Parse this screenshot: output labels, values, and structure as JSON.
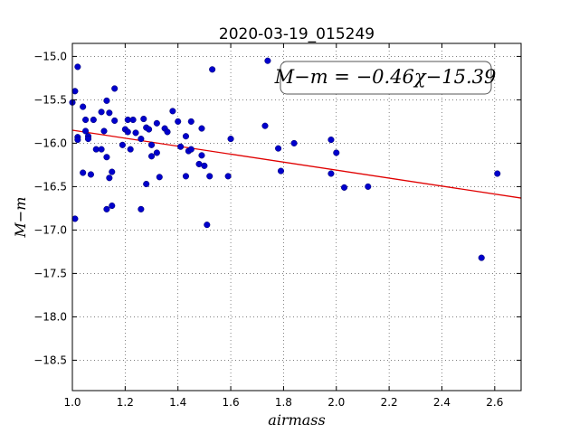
{
  "chart_data": {
    "type": "scatter",
    "title": "2020-03-19_015249",
    "xlabel": "airmass",
    "ylabel": "M−m",
    "xlim": [
      1.0,
      2.7
    ],
    "ylim": [
      -14.85,
      -18.85
    ],
    "y_inverted": true,
    "xticks": [
      1.0,
      1.2,
      1.4,
      1.6,
      1.8,
      2.0,
      2.2,
      2.4,
      2.6
    ],
    "xtick_labels": [
      "1.0",
      "1.2",
      "1.4",
      "1.6",
      "1.8",
      "2.0",
      "2.2",
      "2.4",
      "2.6"
    ],
    "yticks": [
      -15.0,
      -15.5,
      -16.0,
      -16.5,
      -17.0,
      -17.5,
      -18.0,
      -18.5
    ],
    "ytick_labels": [
      "−15.0",
      "−15.5",
      "−16.0",
      "−16.5",
      "−17.0",
      "−17.5",
      "−18.0",
      "−18.5"
    ],
    "grid": true,
    "annotation": "M−m = −0.46χ−15.39",
    "fit": {
      "slope": -0.46,
      "intercept": -15.39,
      "color": "#e00000"
    },
    "marker_color": "#0000cc",
    "points": [
      [
        1.0,
        -15.53
      ],
      [
        1.01,
        -15.4
      ],
      [
        1.02,
        -15.12
      ],
      [
        1.01,
        -16.87
      ],
      [
        1.02,
        -15.93
      ],
      [
        1.02,
        -15.96
      ],
      [
        1.04,
        -15.58
      ],
      [
        1.04,
        -16.34
      ],
      [
        1.05,
        -15.73
      ],
      [
        1.05,
        -15.86
      ],
      [
        1.06,
        -15.92
      ],
      [
        1.06,
        -15.95
      ],
      [
        1.07,
        -16.36
      ],
      [
        1.08,
        -15.73
      ],
      [
        1.09,
        -16.07
      ],
      [
        1.11,
        -16.07
      ],
      [
        1.11,
        -15.64
      ],
      [
        1.12,
        -15.86
      ],
      [
        1.13,
        -15.51
      ],
      [
        1.13,
        -16.16
      ],
      [
        1.13,
        -16.76
      ],
      [
        1.14,
        -15.65
      ],
      [
        1.14,
        -16.4
      ],
      [
        1.15,
        -16.33
      ],
      [
        1.15,
        -16.72
      ],
      [
        1.16,
        -15.37
      ],
      [
        1.16,
        -15.74
      ],
      [
        1.19,
        -16.02
      ],
      [
        1.2,
        -15.84
      ],
      [
        1.21,
        -15.73
      ],
      [
        1.21,
        -15.87
      ],
      [
        1.22,
        -16.07
      ],
      [
        1.23,
        -15.73
      ],
      [
        1.24,
        -15.88
      ],
      [
        1.26,
        -15.95
      ],
      [
        1.26,
        -16.76
      ],
      [
        1.27,
        -15.72
      ],
      [
        1.28,
        -15.82
      ],
      [
        1.28,
        -16.47
      ],
      [
        1.29,
        -15.84
      ],
      [
        1.3,
        -16.02
      ],
      [
        1.3,
        -16.15
      ],
      [
        1.32,
        -15.77
      ],
      [
        1.32,
        -16.11
      ],
      [
        1.33,
        -16.39
      ],
      [
        1.35,
        -15.83
      ],
      [
        1.36,
        -15.87
      ],
      [
        1.38,
        -15.63
      ],
      [
        1.4,
        -15.75
      ],
      [
        1.41,
        -16.04
      ],
      [
        1.43,
        -15.92
      ],
      [
        1.43,
        -16.38
      ],
      [
        1.44,
        -16.09
      ],
      [
        1.45,
        -16.07
      ],
      [
        1.45,
        -15.75
      ],
      [
        1.48,
        -16.24
      ],
      [
        1.49,
        -15.83
      ],
      [
        1.49,
        -16.14
      ],
      [
        1.5,
        -16.26
      ],
      [
        1.51,
        -16.94
      ],
      [
        1.52,
        -16.38
      ],
      [
        1.53,
        -15.15
      ],
      [
        1.59,
        -16.38
      ],
      [
        1.6,
        -15.95
      ],
      [
        1.73,
        -15.8
      ],
      [
        1.74,
        -15.05
      ],
      [
        1.78,
        -16.06
      ],
      [
        1.79,
        -16.32
      ],
      [
        1.84,
        -16.0
      ],
      [
        1.98,
        -15.96
      ],
      [
        1.98,
        -16.35
      ],
      [
        2.0,
        -16.11
      ],
      [
        2.03,
        -16.51
      ],
      [
        2.12,
        -16.5
      ],
      [
        2.55,
        -17.32
      ],
      [
        2.61,
        -16.35
      ]
    ]
  }
}
